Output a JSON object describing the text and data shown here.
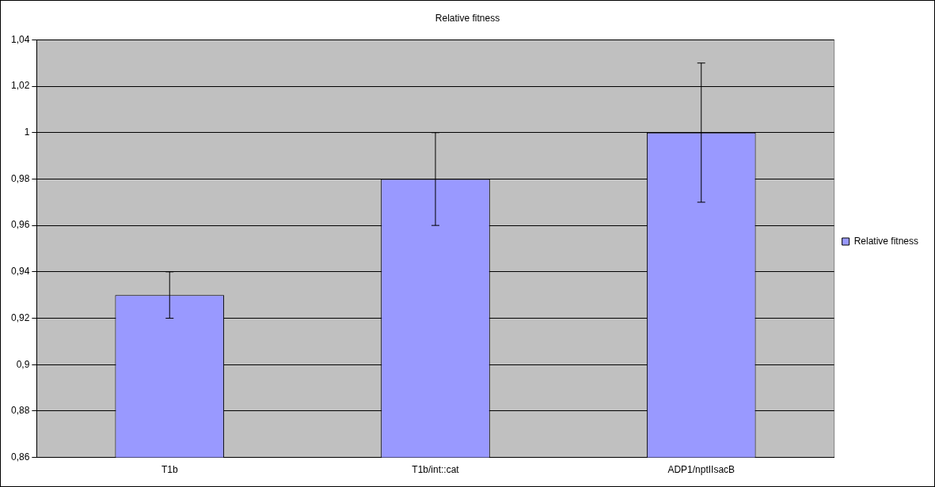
{
  "chart_data": {
    "type": "bar",
    "title": "Relative fitness",
    "categories": [
      "T1b",
      "T1b/int::cat",
      "ADP1/nptIIsacB"
    ],
    "series": [
      {
        "name": "Relative fitness",
        "color": "#9999ff",
        "values": [
          0.93,
          0.98,
          1.0
        ],
        "errors": [
          0.01,
          0.02,
          0.03
        ]
      }
    ],
    "ylim": [
      0.86,
      1.04
    ],
    "yticks": [
      {
        "value": 0.86,
        "label": "0,86"
      },
      {
        "value": 0.88,
        "label": "0,88"
      },
      {
        "value": 0.9,
        "label": "0,9"
      },
      {
        "value": 0.92,
        "label": "0,92"
      },
      {
        "value": 0.94,
        "label": "0,94"
      },
      {
        "value": 0.96,
        "label": "0,96"
      },
      {
        "value": 0.98,
        "label": "0,98"
      },
      1,
      {
        "value": 1.02,
        "label": "1,02"
      },
      {
        "value": 1.04,
        "label": "1,04"
      }
    ],
    "grid": "y",
    "legend": "right"
  }
}
